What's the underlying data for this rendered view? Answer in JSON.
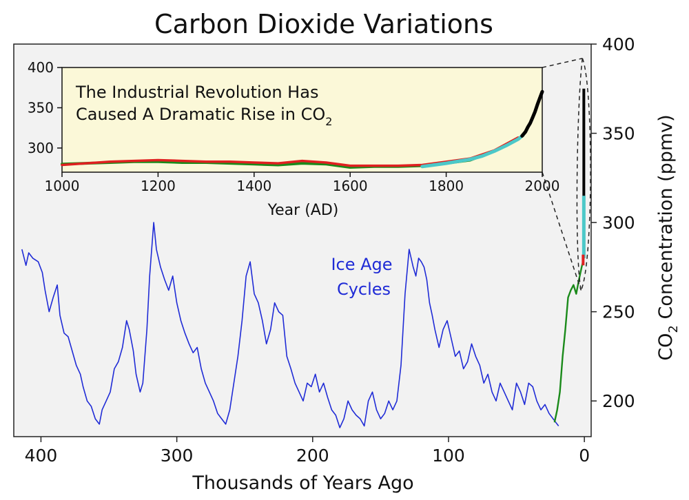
{
  "chart_data": [
    {
      "type": "line",
      "title": "Carbon Dioxide Variations",
      "xlabel": "Thousands of Years Ago",
      "ylabel_main": "CO",
      "ylabel_sub": "2",
      "ylabel_rest": " Concentration (ppmv)",
      "x_reversed": true,
      "xlim": [
        420,
        -5
      ],
      "ylim": [
        180,
        400
      ],
      "x_ticks": [
        400,
        300,
        200,
        100,
        0
      ],
      "y_ticks": [
        200,
        250,
        300,
        350,
        400
      ],
      "y_axis_side": "right",
      "annotation_line1": "Ice Age",
      "annotation_line2": "Cycles",
      "colors": {
        "ice_core": "#1f2bd6",
        "law_dome": "#1a8a1a",
        "red": "#e02020",
        "cyan": "#4cc8c8",
        "black": "#000000",
        "plot_bg": "#f2f2f2"
      },
      "series": [
        {
          "x": [
            414,
            411,
            409,
            406,
            402,
            399,
            397,
            394,
            391,
            388,
            386,
            383,
            380,
            377,
            374,
            371,
            369,
            366,
            363,
            360,
            357,
            355,
            352,
            349,
            346,
            343,
            340,
            337,
            335,
            332,
            330,
            327,
            325,
            322,
            320,
            317,
            315,
            312,
            309,
            306,
            303,
            300,
            297,
            294,
            291,
            288,
            285,
            282,
            279,
            276,
            273,
            270,
            267,
            264,
            261,
            258,
            255,
            252,
            249,
            246,
            243,
            240,
            237,
            234,
            231,
            228,
            225,
            222,
            219,
            216,
            213,
            210,
            207,
            204,
            201,
            198,
            195,
            192,
            189,
            186,
            183,
            180,
            177,
            174,
            171,
            168,
            165,
            162,
            159,
            156,
            153,
            150,
            147,
            144,
            141,
            138,
            135,
            132,
            129,
            126,
            124,
            122,
            120,
            118,
            116,
            114,
            112,
            110,
            107,
            104,
            101,
            98,
            95,
            92,
            89,
            86,
            83,
            80,
            77,
            74,
            71,
            68,
            65,
            62,
            59,
            56,
            53,
            50,
            47,
            44,
            41,
            38,
            35,
            32,
            29,
            26,
            23,
            21,
            19
          ],
          "y": [
            285,
            276,
            283,
            280,
            278,
            272,
            262,
            250,
            258,
            265,
            248,
            238,
            236,
            228,
            220,
            215,
            208,
            200,
            197,
            190,
            187,
            195,
            200,
            205,
            218,
            222,
            230,
            245,
            240,
            228,
            215,
            205,
            210,
            240,
            270,
            300,
            285,
            275,
            268,
            262,
            270,
            255,
            245,
            238,
            232,
            227,
            230,
            218,
            210,
            205,
            200,
            193,
            190,
            187,
            195,
            210,
            225,
            245,
            270,
            278,
            260,
            255,
            245,
            232,
            240,
            255,
            250,
            248,
            225,
            218,
            210,
            205,
            200,
            210,
            208,
            215,
            205,
            210,
            202,
            195,
            192,
            185,
            190,
            200,
            195,
            192,
            190,
            186,
            200,
            205,
            195,
            190,
            193,
            200,
            195,
            200,
            220,
            260,
            285,
            275,
            270,
            280,
            278,
            275,
            268,
            255,
            248,
            240,
            230,
            240,
            245,
            235,
            225,
            228,
            218,
            222,
            232,
            225,
            220,
            210,
            215,
            205,
            200,
            210,
            205,
            200,
            195,
            210,
            205,
            198,
            210,
            208,
            200,
            195,
            198,
            193,
            190,
            188,
            186
          ]
        },
        {
          "x": [
            22,
            20,
            18,
            16,
            14,
            12,
            10,
            8,
            6,
            4,
            2,
            0.5
          ],
          "y": [
            188,
            195,
            205,
            225,
            240,
            258,
            262,
            265,
            260,
            268,
            275,
            280
          ]
        }
      ]
    },
    {
      "type": "line",
      "title": "The Industrial Revolution Has",
      "subtitle": "Caused A Dramatic Rise in CO",
      "subtitle_sub": "2",
      "xlabel": "Year (AD)",
      "xlim": [
        1000,
        2000
      ],
      "ylim": [
        270,
        400
      ],
      "x_ticks": [
        1000,
        1200,
        1400,
        1600,
        1800,
        2000
      ],
      "y_ticks": [
        300,
        350,
        400
      ],
      "series": [
        {
          "x": [
            1000,
            1050,
            1100,
            1150,
            1200,
            1250,
            1300,
            1350,
            1400,
            1450,
            1500,
            1550,
            1600,
            1650,
            1700,
            1750,
            1800,
            1850,
            1900,
            1950
          ],
          "y": [
            280,
            281,
            282,
            283,
            283,
            282,
            282,
            281,
            280,
            279,
            281,
            280,
            276,
            277,
            277,
            278,
            281,
            285,
            296,
            312
          ]
        },
        {
          "x": [
            1000,
            1050,
            1100,
            1150,
            1200,
            1250,
            1300,
            1350,
            1400,
            1450,
            1500,
            1550,
            1600,
            1650,
            1700,
            1750,
            1800,
            1850,
            1900,
            1950
          ],
          "y": [
            279,
            281,
            283,
            284,
            285,
            284,
            283,
            283,
            282,
            281,
            284,
            282,
            278,
            278,
            278,
            279,
            283,
            287,
            297,
            313
          ]
        },
        {
          "x": [
            1750,
            1800,
            1850,
            1875,
            1900,
            1925,
            1950,
            1960
          ],
          "y": [
            277,
            281,
            286,
            290,
            296,
            303,
            311,
            316
          ]
        },
        {
          "x": [
            1958,
            1965,
            1970,
            1975,
            1980,
            1985,
            1990,
            1995,
            2000
          ],
          "y": [
            315,
            320,
            326,
            331,
            338,
            345,
            354,
            362,
            370
          ]
        }
      ]
    }
  ]
}
